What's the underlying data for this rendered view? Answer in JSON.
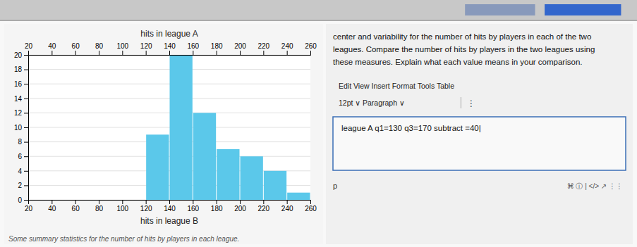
{
  "chart_data": {
    "type": "histogram",
    "bins": [
      20,
      40,
      60,
      80,
      100,
      120,
      140,
      160,
      180,
      200,
      220,
      240,
      260
    ],
    "values": [
      0,
      0,
      0,
      0,
      0,
      9,
      20,
      12,
      7,
      6,
      4,
      1
    ],
    "color": "#5bc8ea",
    "xlabel": "hits in league B",
    "x2label": "hits in league A",
    "xlim": [
      20,
      260
    ],
    "xticks": [
      20,
      40,
      60,
      80,
      100,
      120,
      140,
      160,
      180,
      200,
      220,
      240,
      260
    ],
    "ylim": [
      0,
      20
    ],
    "yticks": [
      0,
      2,
      4,
      6,
      8,
      10,
      12,
      14,
      16,
      18,
      20
    ],
    "grid": true,
    "annotations": [
      "Some summary statistics for the number of hits by players in each league.",
      "center and variability for the number of hits by players in each of the two",
      "leagues. Compare the number of hits by players in the two leagues using",
      "these measures. Explain what each value means in your comparison.",
      "Edit   View   Insert   Format   Tools   Table",
      "12pt ∨   Paragraph ∨",
      "⋮",
      "league A q1=130 q3=170 subtract =40|",
      "p",
      "⌘  ⓘ  |  </>  ↗  ⋮⋮"
    ]
  }
}
